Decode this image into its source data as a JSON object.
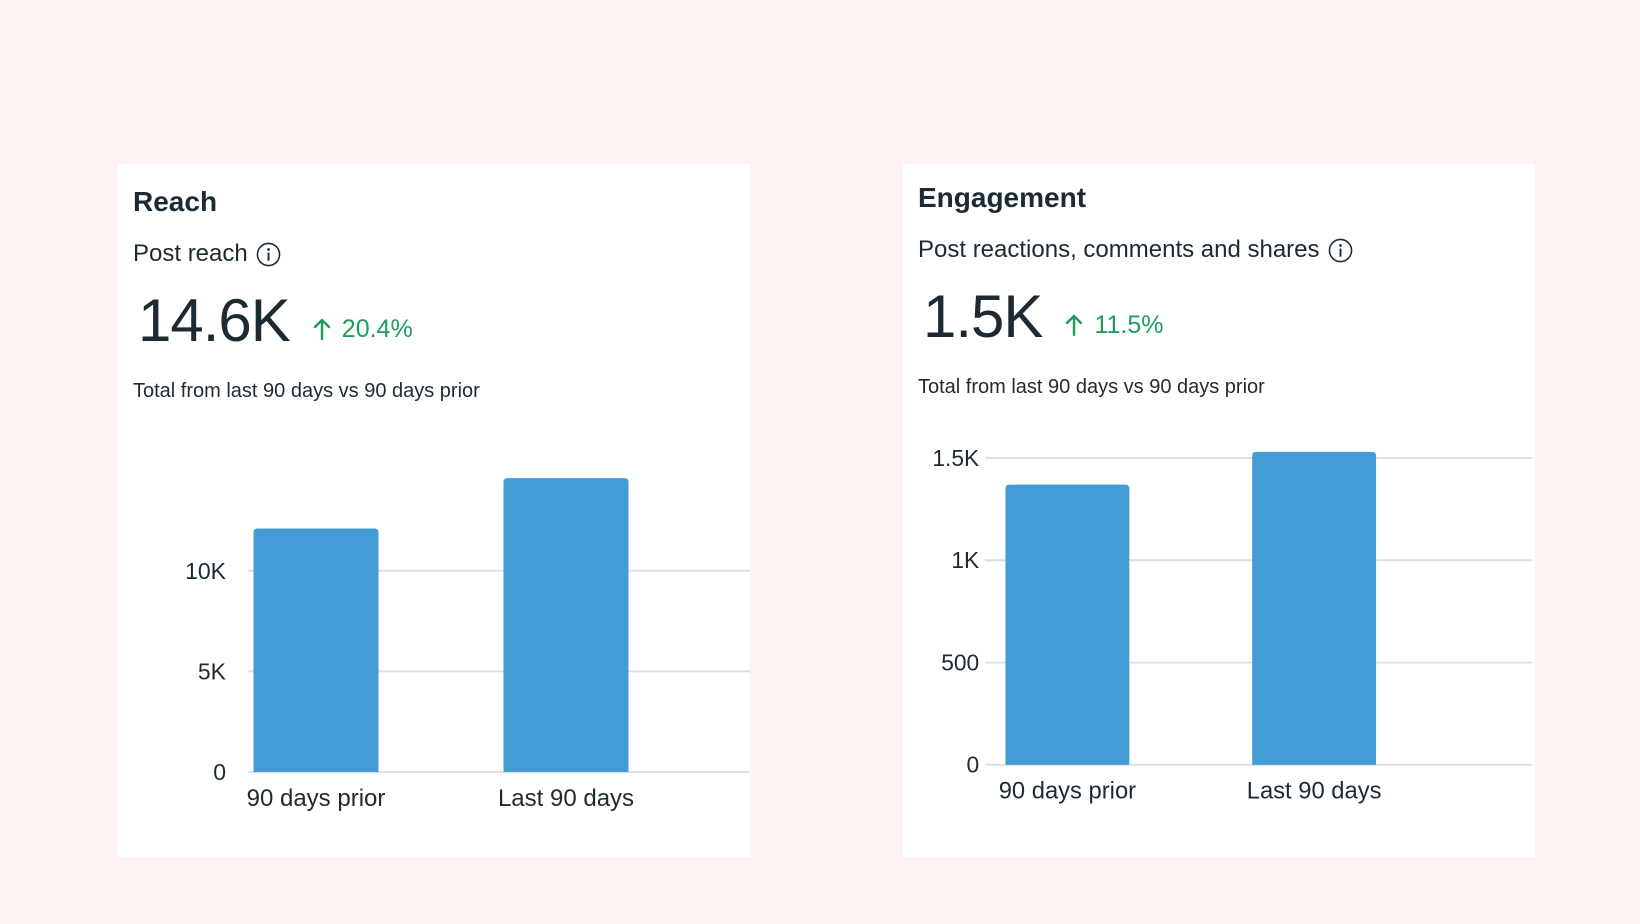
{
  "cards": [
    {
      "title": "Reach",
      "subtitle": "Post reach",
      "value": "14.6K",
      "change": "20.4%",
      "caption": "Total from last 90 days vs 90 days prior"
    },
    {
      "title": "Engagement",
      "subtitle": "Post reactions, comments and shares",
      "value": "1.5K",
      "change": "11.5%",
      "caption": "Total from last 90 days vs 90 days prior"
    }
  ],
  "colors": {
    "bar": "#439cd6",
    "positive": "#1e9c5e",
    "grid": "#dddfe2",
    "background": "#fef3f3"
  },
  "chart_data": [
    {
      "type": "bar",
      "title": "Post reach",
      "categories": [
        "90 days prior",
        "Last 90 days"
      ],
      "values": [
        12100,
        14600
      ],
      "yticks": [
        0,
        5000,
        10000
      ],
      "ytick_labels": [
        "0",
        "5K",
        "10K"
      ],
      "ylim": [
        0,
        16000
      ],
      "xlabel": "",
      "ylabel": ""
    },
    {
      "type": "bar",
      "title": "Post reactions, comments and shares",
      "categories": [
        "90 days prior",
        "Last 90 days"
      ],
      "values": [
        1370,
        1530
      ],
      "yticks": [
        0,
        500,
        1000,
        1500
      ],
      "ytick_labels": [
        "0",
        "500",
        "1K",
        "1.5K"
      ],
      "ylim": [
        0,
        1560
      ],
      "xlabel": "",
      "ylabel": ""
    }
  ]
}
